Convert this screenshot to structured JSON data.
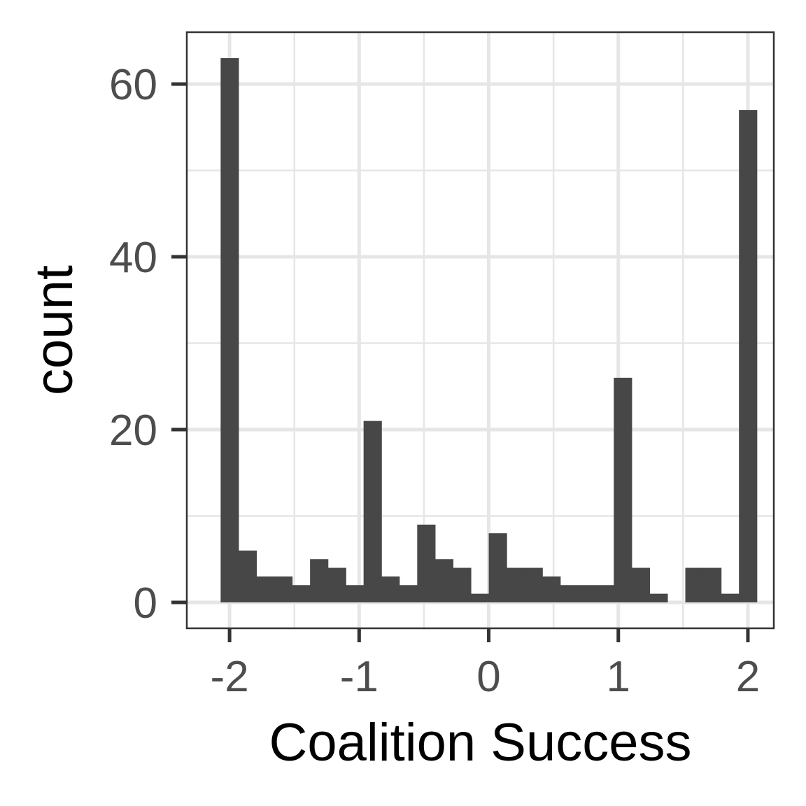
{
  "chart_data": {
    "type": "bar",
    "xlabel": "Coalition Success",
    "ylabel": "count",
    "xlim": [
      -2.33,
      2.2
    ],
    "ylim": [
      -3.0,
      66.0
    ],
    "x_ticks": [
      -2,
      -1,
      0,
      1,
      2
    ],
    "x_tick_labels": [
      "-2",
      "-1",
      "0",
      "1",
      "2"
    ],
    "y_ticks": [
      0,
      20,
      40,
      60
    ],
    "y_tick_labels": [
      "0",
      "20",
      "40",
      "60"
    ],
    "bin_width": 0.1379,
    "bin_centers": [
      -2.0,
      -1.862,
      -1.724,
      -1.586,
      -1.448,
      -1.31,
      -1.172,
      -1.034,
      -0.897,
      -0.759,
      -0.621,
      -0.483,
      -0.345,
      -0.207,
      -0.069,
      0.069,
      0.207,
      0.345,
      0.483,
      0.621,
      0.759,
      0.897,
      1.034,
      1.172,
      1.31,
      1.448,
      1.586,
      1.724,
      1.862,
      2.0
    ],
    "values": [
      63,
      6,
      3,
      3,
      2,
      5,
      4,
      2,
      21,
      3,
      2,
      9,
      5,
      4,
      1,
      8,
      4,
      4,
      3,
      2,
      2,
      2,
      26,
      4,
      1,
      0,
      4,
      4,
      1,
      57
    ],
    "grid": true,
    "bar_color": "#474747",
    "grid_color": "#e6e6e6",
    "panel_border_color": "#333333"
  }
}
